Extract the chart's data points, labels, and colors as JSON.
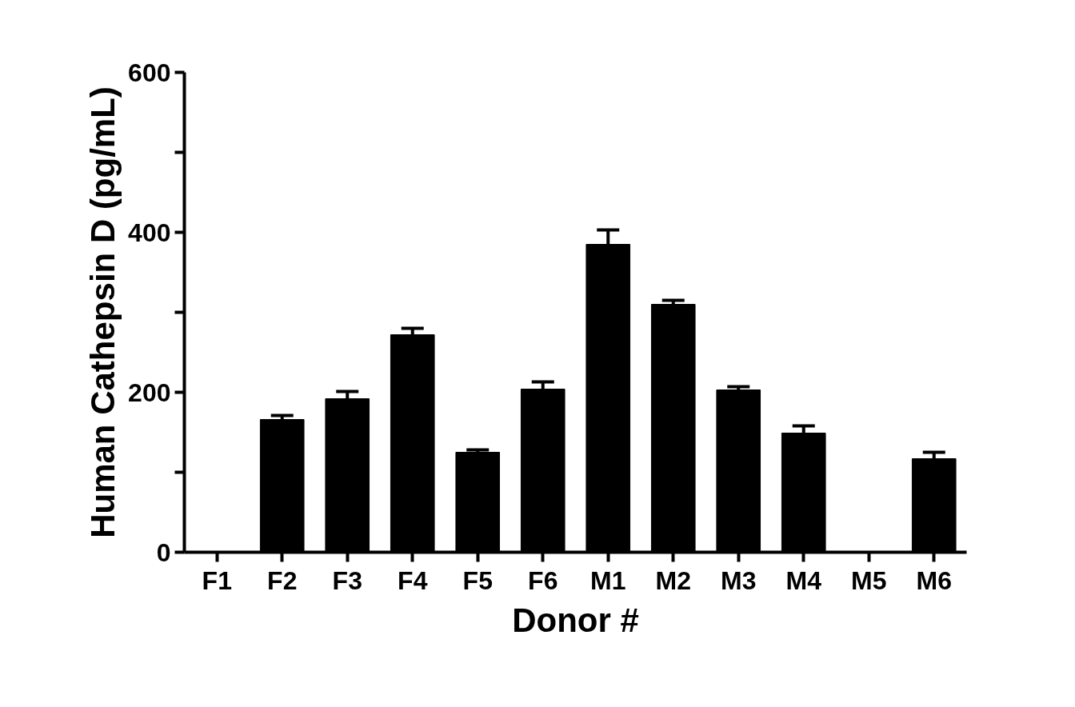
{
  "chart_data": {
    "type": "bar",
    "xlabel": "Donor #",
    "ylabel": "Human Cathepsin D (pg/mL)",
    "categories": [
      "F1",
      "F2",
      "F3",
      "F4",
      "F5",
      "F6",
      "M1",
      "M2",
      "M3",
      "M4",
      "M5",
      "M6"
    ],
    "series": [
      {
        "color": "#000000",
        "values": [
          null,
          166,
          192,
          272,
          125,
          204,
          385,
          310,
          203,
          149,
          null,
          117
        ],
        "errors": [
          null,
          5,
          9,
          8,
          3,
          9,
          18,
          5,
          4,
          9,
          null,
          8
        ]
      }
    ],
    "ylim": [
      0,
      600
    ],
    "yticks": [
      0,
      {
        "value": 100,
        "label": null
      },
      200,
      {
        "value": 300,
        "label": null
      },
      400,
      {
        "value": 500,
        "label": null
      },
      600
    ],
    "grid": false
  }
}
